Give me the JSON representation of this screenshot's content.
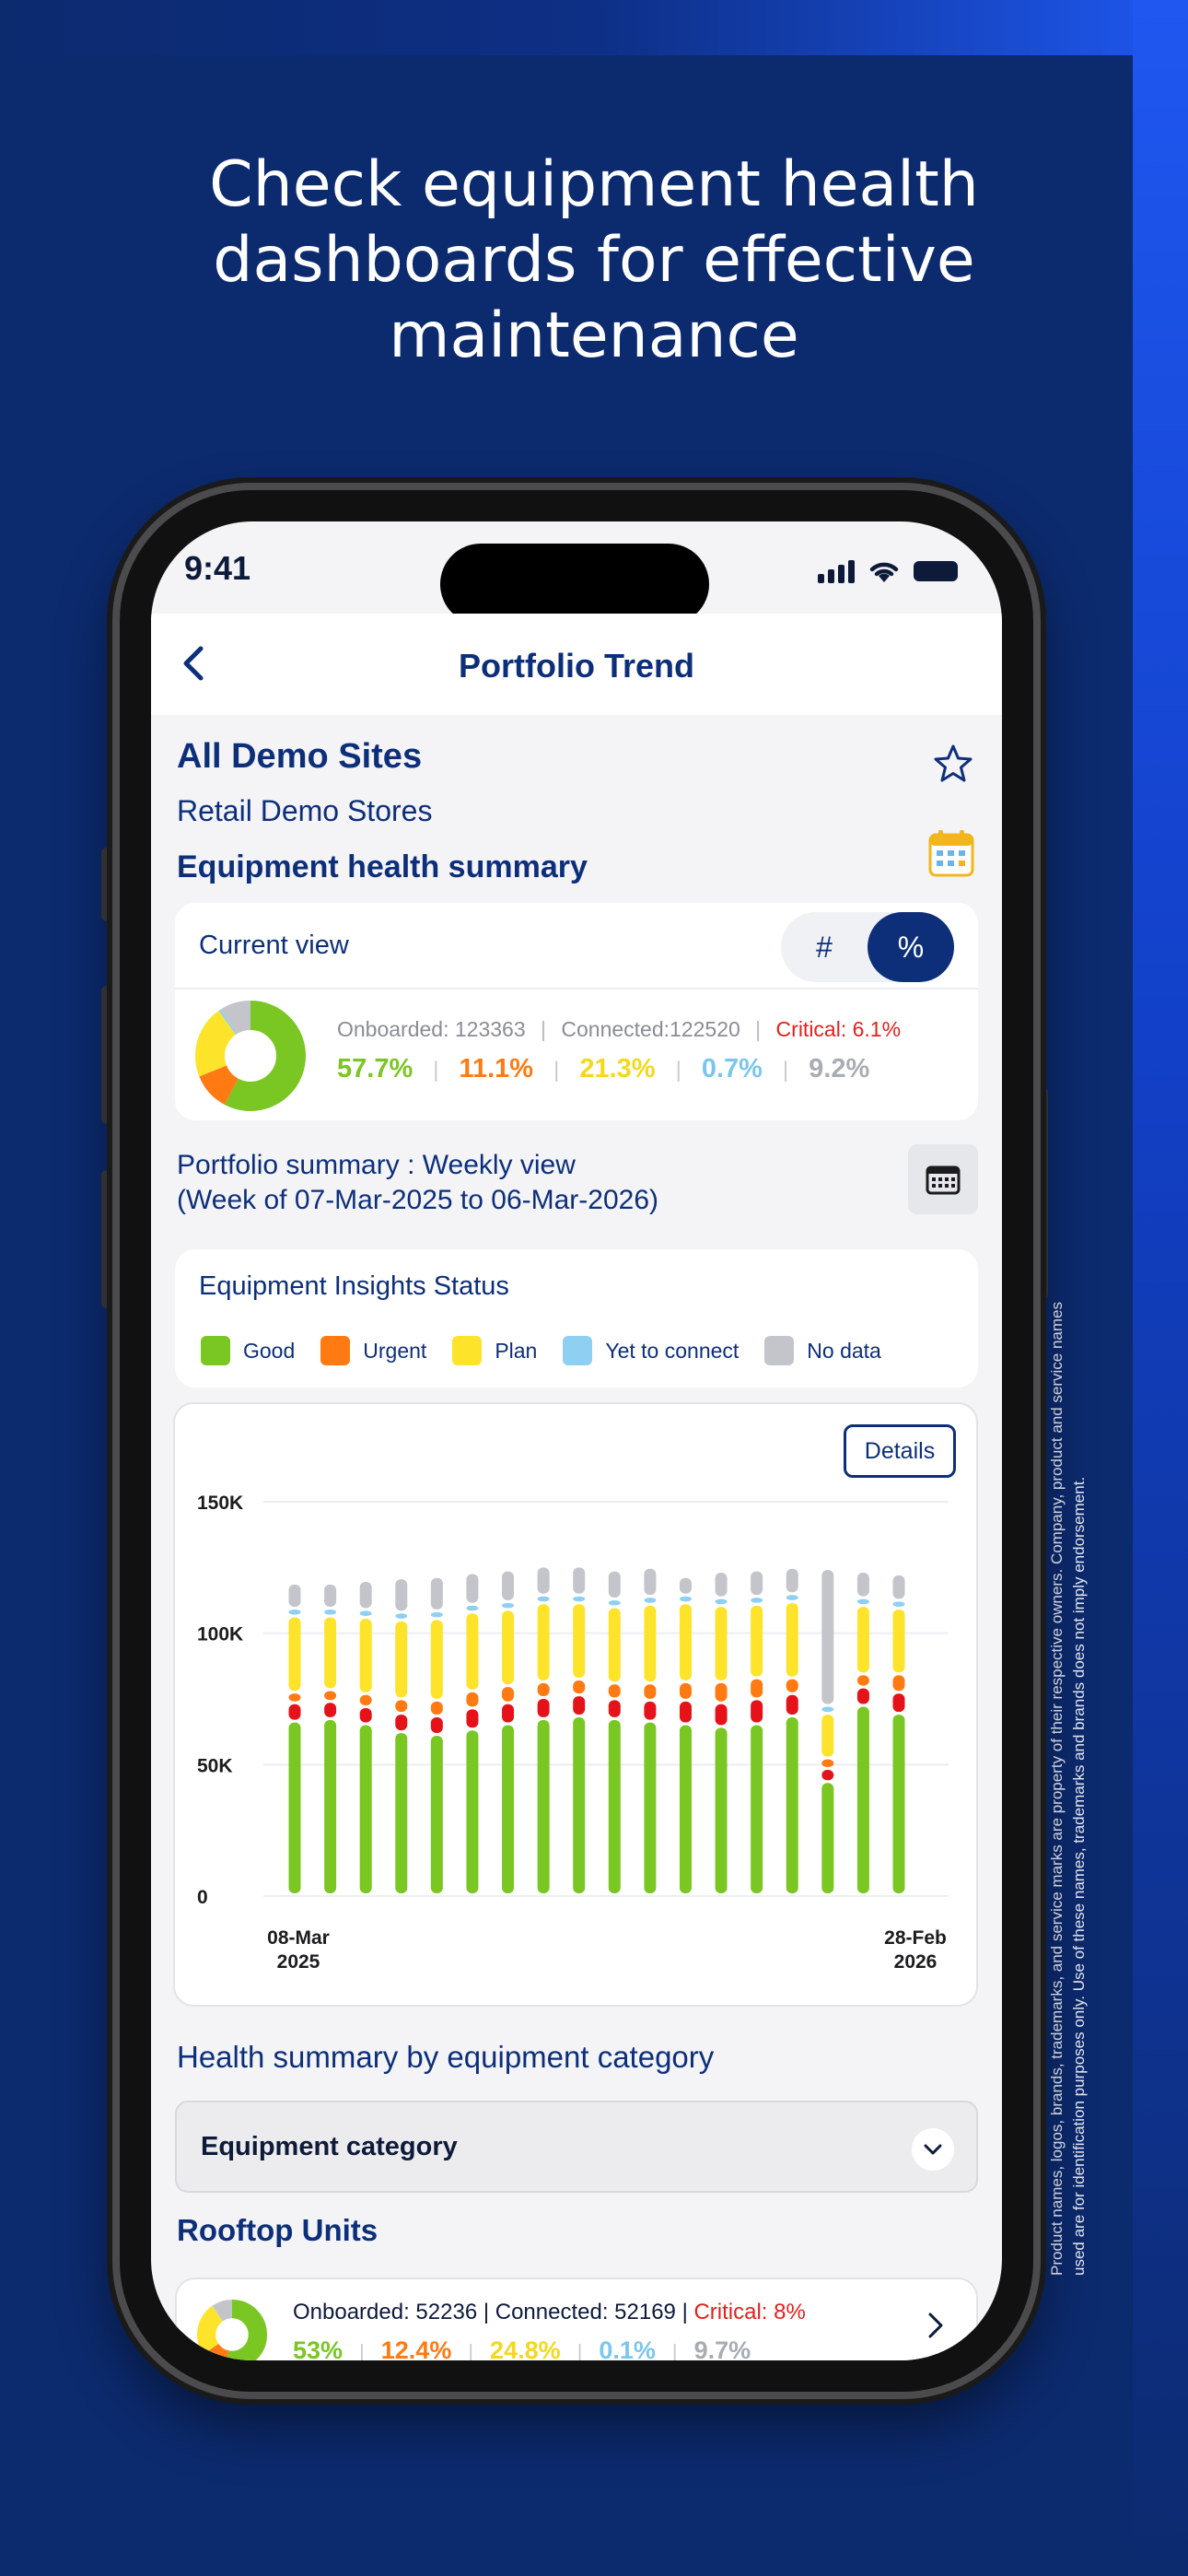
{
  "headline": [
    "Check equipment health",
    "dashboards for effective",
    "maintenance"
  ],
  "disclaimer": "Product names, logos, brands, trademarks, and service marks are property of their respective owners. Company, product and service names used are for identification purposes only. Use of these names, trademarks and brands does not imply endorsement.",
  "status": {
    "time": "9:41"
  },
  "nav": {
    "title": "Portfolio Trend"
  },
  "site": {
    "title": "All Demo Sites",
    "subtitle": "Retail Demo Stores"
  },
  "summary": {
    "title": "Equipment health summary",
    "current_view": "Current view",
    "toggle_count": "#",
    "toggle_percent": "%",
    "onboarded": "Onboarded: 123363",
    "connected": "Connected:122520",
    "critical": "Critical: 6.1%",
    "pct_good": "57.7%",
    "pct_urgent": "11.1%",
    "pct_plan": "21.3%",
    "pct_yet": "0.7%",
    "pct_nodata": "9.2%",
    "donut": [
      57.7,
      11.1,
      21.3,
      0.7,
      9.2
    ]
  },
  "portfolio": {
    "line1": "Portfolio summary : Weekly view",
    "line2": "(Week of 07-Mar-2025 to 06-Mar-2026)"
  },
  "insights": {
    "title": "Equipment Insights Status",
    "legend": [
      "Good",
      "Urgent",
      "Plan",
      "Yet to connect",
      "No data"
    ]
  },
  "colors": {
    "good": "#7ac623",
    "urgent": "#ff7a12",
    "critical": "#e6121a",
    "plan": "#fde32a",
    "yet": "#8fd0f2",
    "nodata": "#c3c5cb",
    "navy": "#0d2f7a"
  },
  "chart": {
    "details_label": "Details"
  },
  "chart_data": {
    "type": "bar",
    "stacked": true,
    "y_ticks": [
      "150K",
      "100K",
      "50K",
      "0"
    ],
    "ylim": [
      0,
      150000
    ],
    "x_start_label": [
      "08-Mar",
      "2025"
    ],
    "x_end_label": [
      "28-Feb",
      "2026"
    ],
    "series_order": [
      "good",
      "critical",
      "urgent",
      "plan",
      "yet",
      "nodata"
    ],
    "bars": [
      {
        "good": 66000,
        "critical": 7000,
        "urgent": 4000,
        "plan": 29000,
        "yet": 3000,
        "nodata": 9500
      },
      {
        "good": 67000,
        "critical": 6500,
        "urgent": 4500,
        "plan": 28000,
        "yet": 3000,
        "nodata": 9500
      },
      {
        "good": 65000,
        "critical": 6500,
        "urgent": 5000,
        "plan": 29000,
        "yet": 3000,
        "nodata": 11000
      },
      {
        "good": 62000,
        "critical": 7000,
        "urgent": 5500,
        "plan": 30000,
        "yet": 3000,
        "nodata": 13000
      },
      {
        "good": 61000,
        "critical": 7000,
        "urgent": 6000,
        "plan": 31000,
        "yet": 3000,
        "nodata": 13000
      },
      {
        "good": 63000,
        "critical": 8000,
        "urgent": 6500,
        "plan": 30000,
        "yet": 3000,
        "nodata": 12000
      },
      {
        "good": 65000,
        "critical": 8000,
        "urgent": 6500,
        "plan": 29000,
        "yet": 3000,
        "nodata": 12000
      },
      {
        "good": 67000,
        "critical": 8000,
        "urgent": 6000,
        "plan": 30000,
        "yet": 3000,
        "nodata": 11000
      },
      {
        "good": 68000,
        "critical": 8000,
        "urgent": 6000,
        "plan": 29000,
        "yet": 3000,
        "nodata": 11000
      },
      {
        "good": 67000,
        "critical": 7500,
        "urgent": 6000,
        "plan": 29000,
        "yet": 3000,
        "nodata": 11000
      },
      {
        "good": 66000,
        "critical": 8000,
        "urgent": 6500,
        "plan": 30000,
        "yet": 3000,
        "nodata": 11000
      },
      {
        "good": 65000,
        "critical": 9000,
        "urgent": 7000,
        "plan": 30000,
        "yet": 3000,
        "nodata": 7000
      },
      {
        "good": 64000,
        "critical": 9000,
        "urgent": 8000,
        "plan": 29000,
        "yet": 3000,
        "nodata": 10000
      },
      {
        "good": 65000,
        "critical": 9500,
        "urgent": 8000,
        "plan": 28000,
        "yet": 3000,
        "nodata": 10000
      },
      {
        "good": 68000,
        "critical": 8500,
        "urgent": 6000,
        "plan": 29000,
        "yet": 3000,
        "nodata": 10000
      },
      {
        "good": 43000,
        "critical": 5000,
        "urgent": 4000,
        "plan": 17000,
        "yet": 3000,
        "nodata": 52000
      },
      {
        "good": 72000,
        "critical": 7000,
        "urgent": 5000,
        "plan": 26000,
        "yet": 3000,
        "nodata": 10000
      },
      {
        "good": 69000,
        "critical": 8000,
        "urgent": 7000,
        "plan": 25000,
        "yet": 3000,
        "nodata": 10000
      }
    ]
  },
  "category": {
    "title": "Health summary by equipment category",
    "select_label": "Equipment category"
  },
  "rooftop": {
    "title": "Rooftop Units",
    "stats_prefix": "Onboarded: 52236 | Connected: 52169 | ",
    "critical": "Critical: 8%",
    "pct_good": "53%",
    "pct_urgent": "12.4%",
    "pct_plan": "24.8%",
    "pct_yet": "0.1%",
    "pct_nodata": "9.7%",
    "donut": [
      53,
      12.4,
      24.8,
      0.1,
      9.7
    ]
  }
}
